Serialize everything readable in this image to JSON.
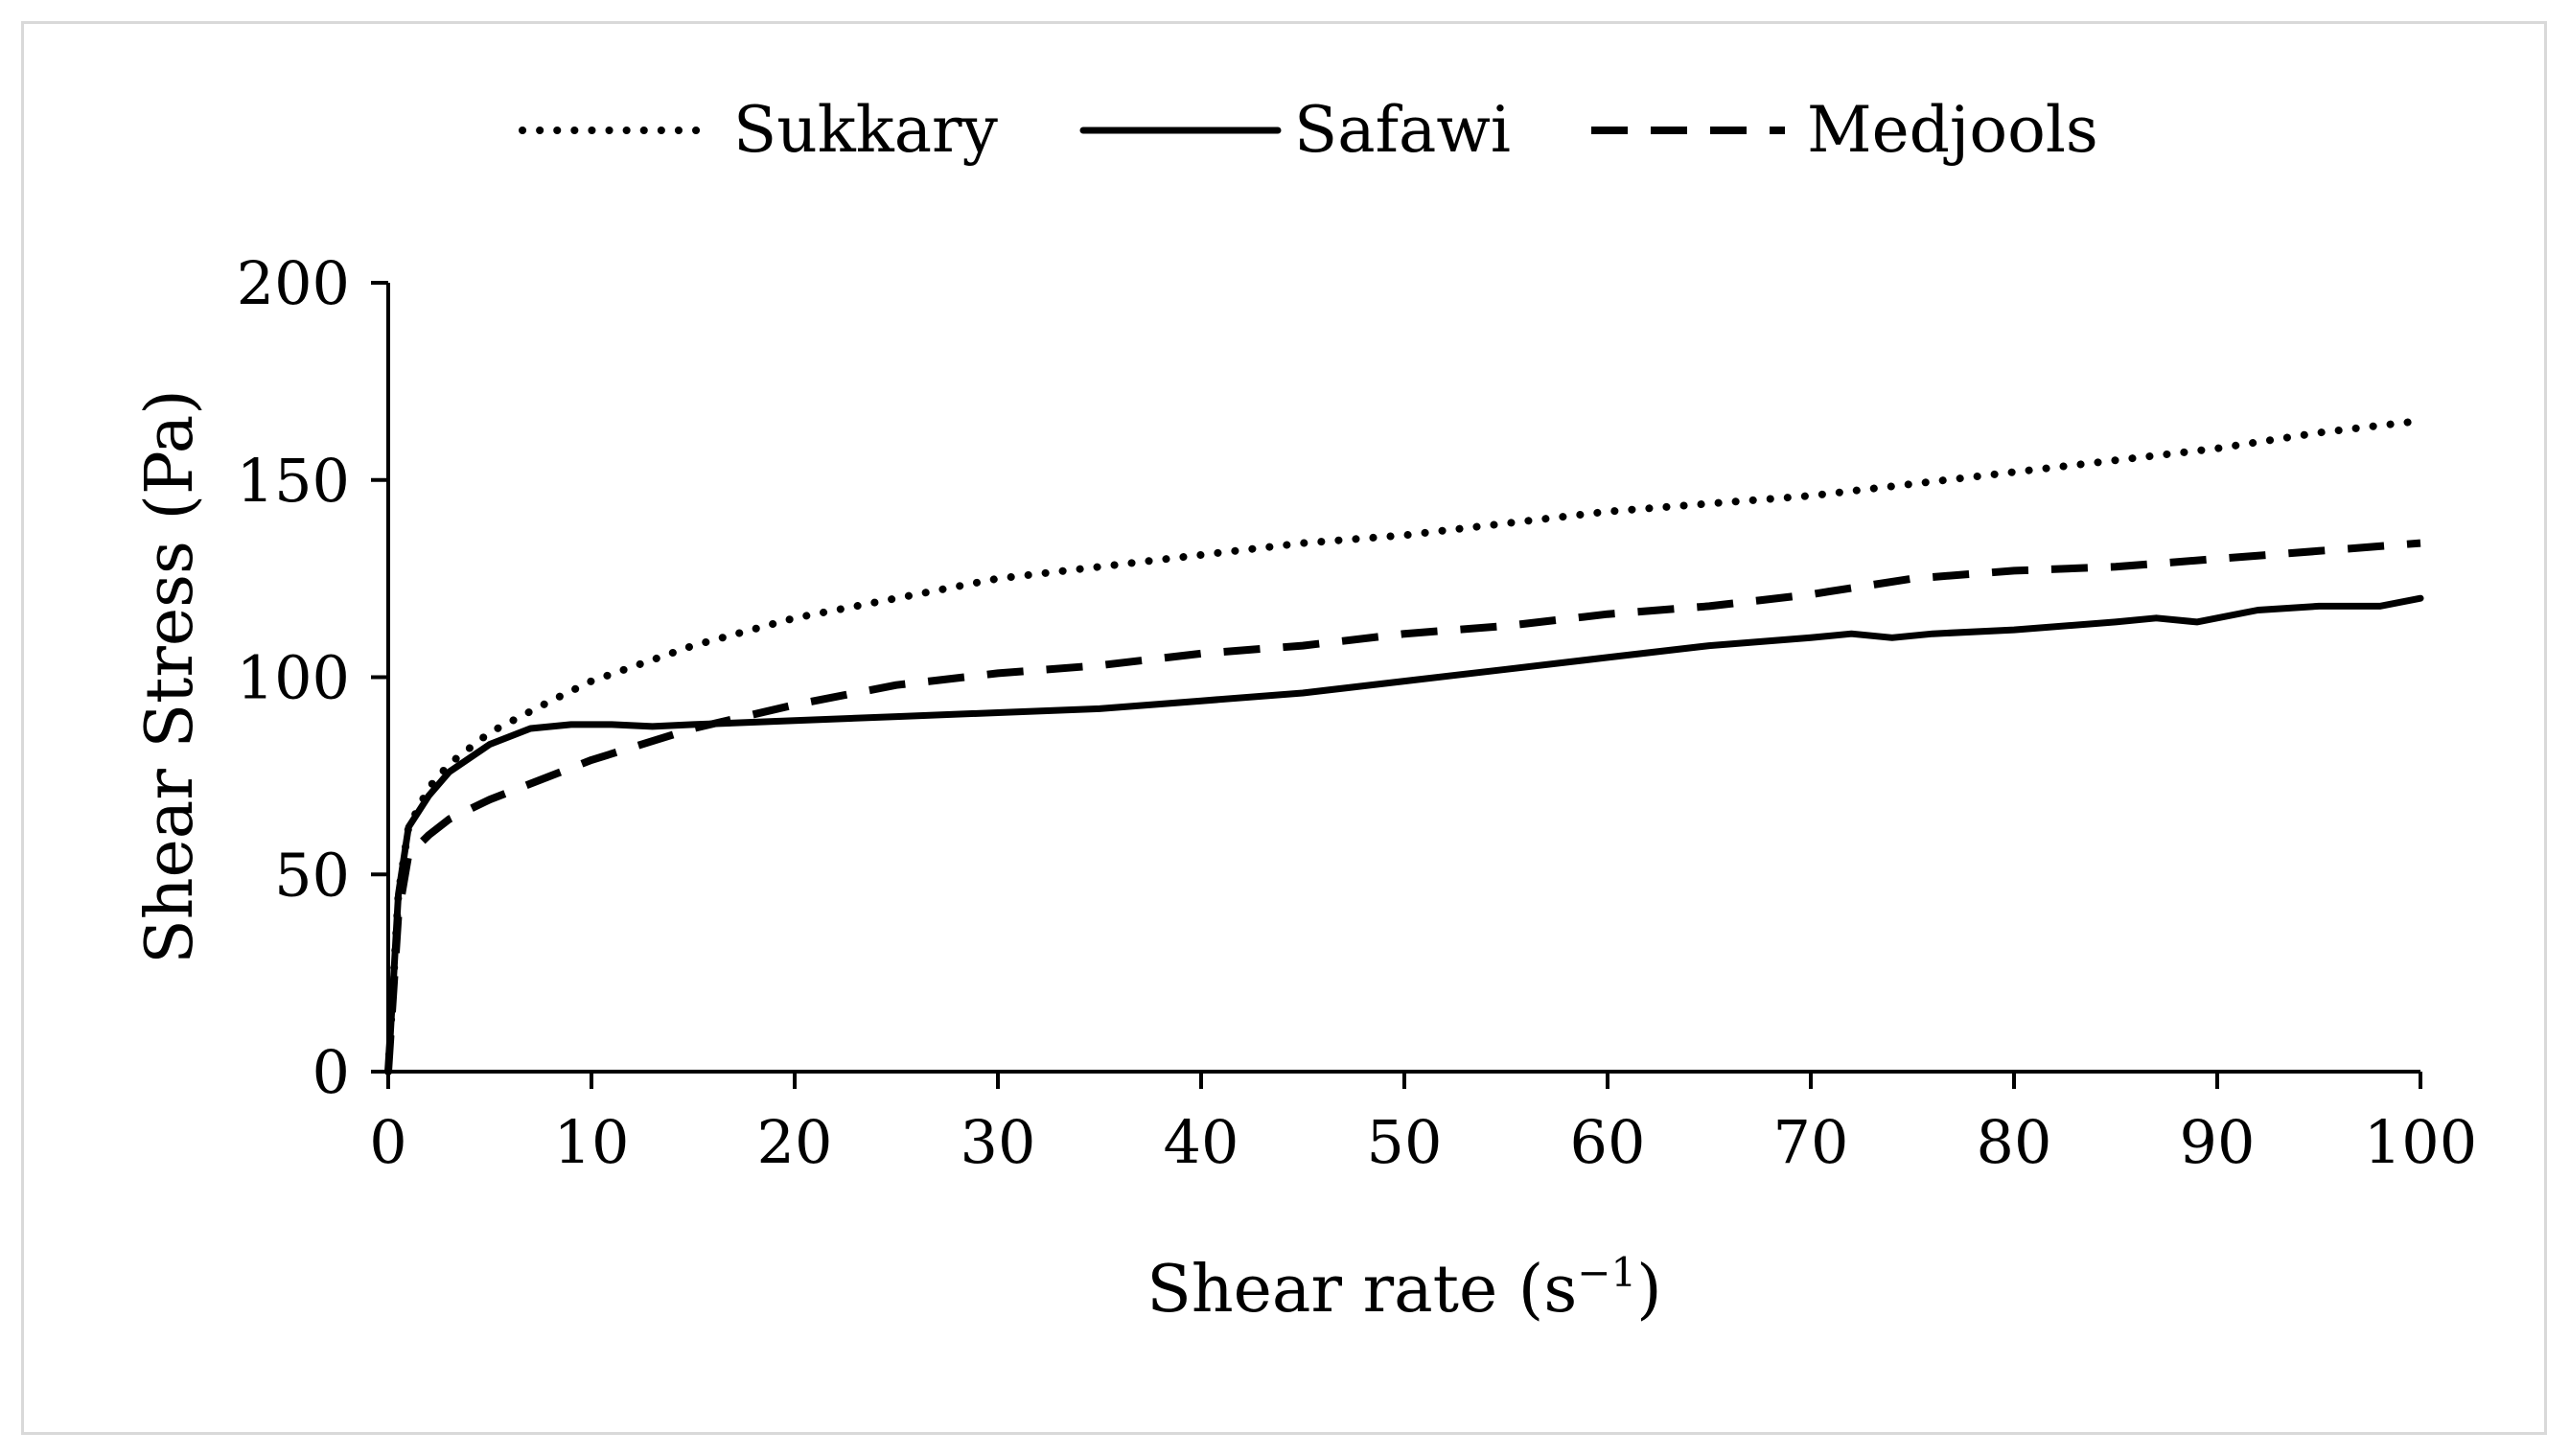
{
  "chart_data": {
    "type": "line",
    "title": "",
    "xlabel": "Shear rate (s",
    "xlabel_sup": "−1",
    "xlabel_close": ")",
    "ylabel": "Shear Stress (Pa)",
    "xlim": [
      0,
      100
    ],
    "ylim": [
      0,
      200
    ],
    "x_ticks": [
      "0",
      "10",
      "20",
      "30",
      "40",
      "50",
      "60",
      "70",
      "80",
      "90",
      "100"
    ],
    "y_ticks": [
      "0",
      "50",
      "100",
      "150",
      "200"
    ],
    "grid": false,
    "legend_position": "top-center",
    "series": [
      {
        "name": "Sukkary",
        "style": "dotted",
        "x": [
          0,
          0.5,
          1,
          2,
          3,
          5,
          8,
          10,
          15,
          20,
          25,
          30,
          35,
          40,
          45,
          50,
          55,
          60,
          65,
          70,
          75,
          80,
          85,
          90,
          95,
          100
        ],
        "values": [
          0,
          45,
          62,
          72,
          78,
          86,
          94,
          99,
          108,
          115,
          120,
          125,
          128,
          131,
          134,
          136,
          139,
          142,
          144,
          146,
          149,
          152,
          155,
          158,
          162,
          165
        ]
      },
      {
        "name": "Safawi",
        "style": "solid",
        "x": [
          0,
          0.5,
          1,
          2,
          3,
          5,
          7,
          9,
          11,
          13,
          15,
          20,
          25,
          30,
          35,
          40,
          45,
          50,
          55,
          60,
          65,
          70,
          72,
          74,
          76,
          80,
          85,
          87,
          89,
          92,
          95,
          98,
          100
        ],
        "values": [
          0,
          45,
          62,
          70,
          76,
          83,
          87,
          88,
          88,
          87.5,
          88,
          89,
          90,
          91,
          92,
          94,
          96,
          99,
          102,
          105,
          108,
          110,
          111,
          110,
          111,
          112,
          114,
          115,
          114,
          117,
          118,
          118,
          120
        ]
      },
      {
        "name": "Medjools",
        "style": "dashed",
        "x": [
          0,
          0.5,
          1,
          2,
          3,
          5,
          8,
          10,
          15,
          20,
          25,
          30,
          35,
          40,
          45,
          50,
          55,
          60,
          65,
          70,
          75,
          80,
          85,
          90,
          95,
          100
        ],
        "values": [
          0,
          40,
          55,
          60,
          64,
          69,
          75,
          79,
          87,
          93,
          98,
          101,
          103,
          106,
          108,
          111,
          113,
          116,
          118,
          121,
          125,
          127,
          128,
          130,
          132,
          134
        ]
      }
    ]
  }
}
